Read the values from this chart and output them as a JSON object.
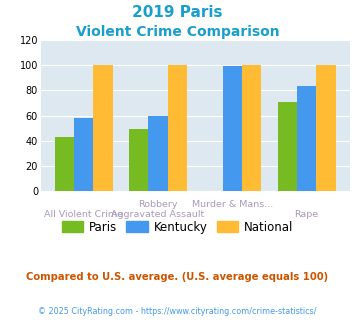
{
  "title_line1": "2019 Paris",
  "title_line2": "Violent Crime Comparison",
  "title_color": "#1a9fcc",
  "x_labels_row1": [
    "",
    "Robbery",
    "Murder & Mans...",
    ""
  ],
  "x_labels_row2": [
    "All Violent Crime",
    "Aggravated Assault",
    "",
    "Rape"
  ],
  "paris_values": [
    43,
    49,
    0,
    71
  ],
  "kentucky_values": [
    58,
    60,
    99,
    83
  ],
  "national_values": [
    100,
    100,
    100,
    100
  ],
  "paris_color": "#77bb22",
  "kentucky_color": "#4499ee",
  "national_color": "#ffbb33",
  "ylim": [
    0,
    120
  ],
  "yticks": [
    0,
    20,
    40,
    60,
    80,
    100,
    120
  ],
  "plot_bg_color": "#dde8f0",
  "legend_labels": [
    "Paris",
    "Kentucky",
    "National"
  ],
  "footnote1": "Compared to U.S. average. (U.S. average equals 100)",
  "footnote2": "© 2025 CityRating.com - https://www.cityrating.com/crime-statistics/",
  "footnote1_color": "#cc5500",
  "footnote2_color": "#4499ee",
  "label_color": "#aa99bb",
  "grid_color": "#ffffff"
}
